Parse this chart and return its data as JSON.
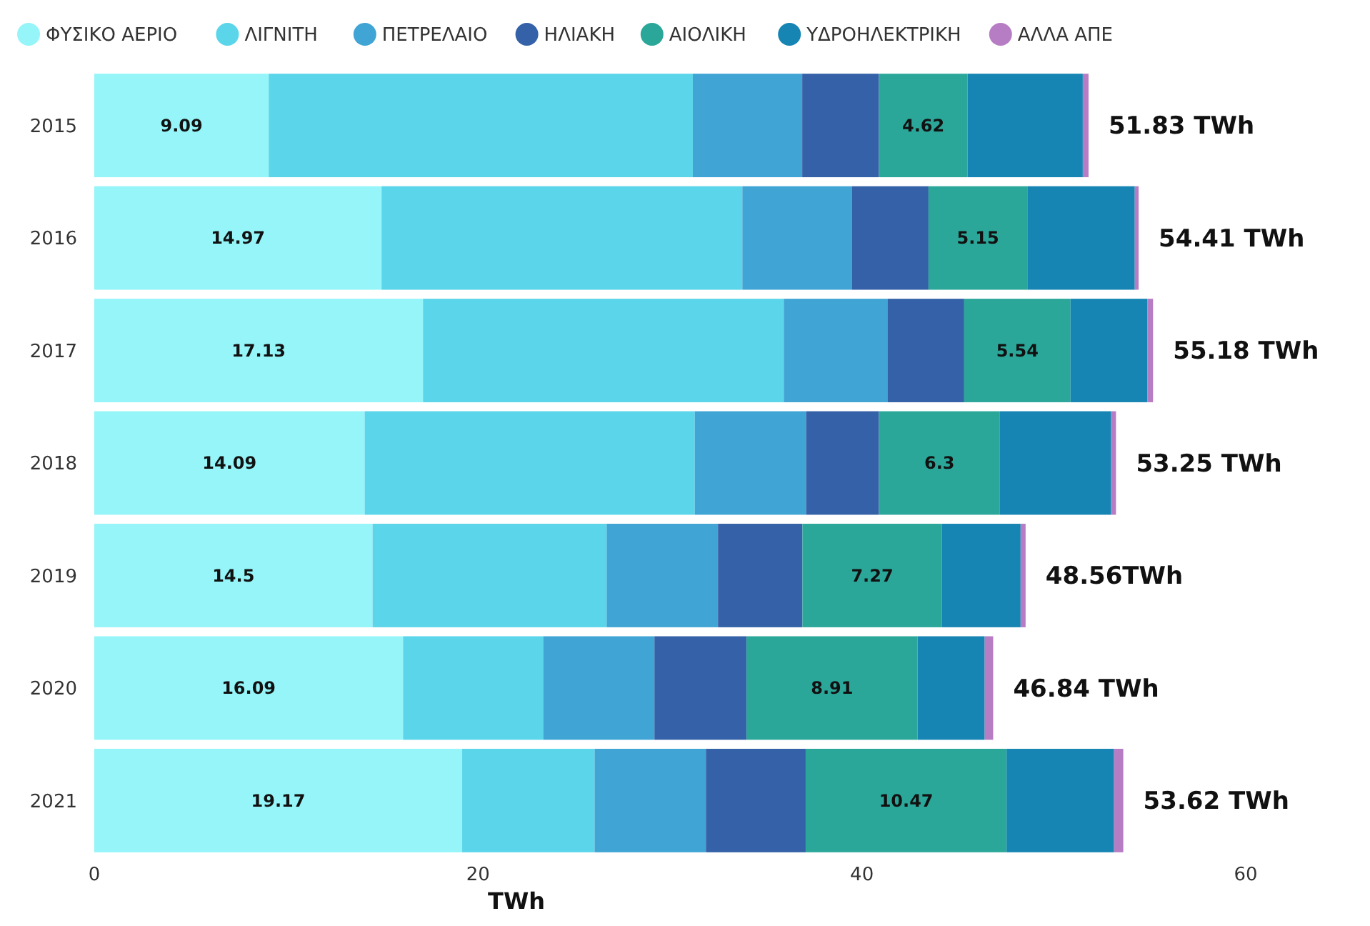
{
  "chart_data": {
    "type": "bar",
    "orientation": "horizontal",
    "stacked": true,
    "xlabel": "TWh",
    "categories": [
      "2015",
      "2016",
      "2017",
      "2018",
      "2019",
      "2020",
      "2021"
    ],
    "xlim": [
      0,
      60
    ],
    "xticks": [
      0,
      20,
      40,
      60
    ],
    "grid": false,
    "legend": "top",
    "series": [
      {
        "name": "ΦΥΣΙΚΟ ΑΕΡΙΟ",
        "color": "#95f5f9",
        "values": [
          9.09,
          14.97,
          17.13,
          14.09,
          14.5,
          16.09,
          19.17
        ],
        "value_labels": [
          "9.09",
          "14.97",
          "17.13",
          "14.09",
          "14.5",
          "16.09",
          "19.17"
        ]
      },
      {
        "name": "ΛΙΓΝΙΤΗ",
        "color": "#5ad5ea",
        "values": [
          22.1,
          18.8,
          18.8,
          17.2,
          12.2,
          7.3,
          6.9
        ]
      },
      {
        "name": "ΠΕΤΡΕΛΑΙΟ",
        "color": "#40a4d4",
        "values": [
          5.7,
          5.7,
          5.4,
          5.8,
          5.8,
          5.8,
          5.8
        ]
      },
      {
        "name": "ΗΛΙΑΚΗ",
        "color": "#3461a8",
        "values": [
          4.0,
          4.0,
          4.0,
          3.8,
          4.4,
          4.8,
          5.2
        ]
      },
      {
        "name": "ΑΙΟΛΙΚΗ",
        "color": "#2ba79a",
        "values": [
          4.62,
          5.15,
          5.54,
          6.3,
          7.27,
          8.91,
          10.47
        ],
        "value_labels": [
          "4.62",
          "5.15",
          "5.54",
          "6.3",
          "7.27",
          "8.91",
          "10.47"
        ]
      },
      {
        "name": "ΥΔΡΟΗΛΕΚΤΡΙΚΗ",
        "color": "#1685b3",
        "values": [
          6.0,
          5.6,
          4.0,
          5.8,
          4.1,
          3.5,
          5.6
        ]
      },
      {
        "name": "ΑΛΛΑ ΑΠΕ",
        "color": "#b77dc4",
        "values": [
          0.3,
          0.2,
          0.3,
          0.25,
          0.26,
          0.44,
          0.48
        ]
      }
    ],
    "totals": [
      "51.83 TWh",
      "54.41 TWh",
      "55.18 TWh",
      "53.25 TWh",
      "48.56TWh",
      "46.84 TWh",
      "53.62 TWh"
    ]
  }
}
